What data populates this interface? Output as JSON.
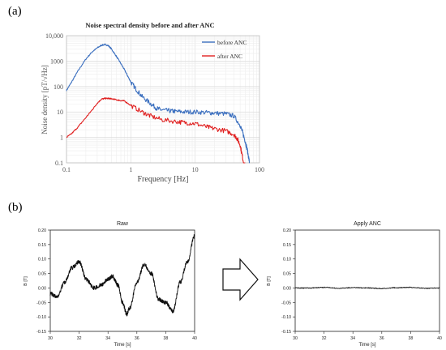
{
  "panel_a": {
    "label": "(a)",
    "title": "Noise spectral density before and after ANC",
    "xlabel": "Frequency [Hz]",
    "ylabel": "Noise density [pT/√Hz]",
    "xticks": [
      "0.1",
      "1",
      "10",
      "100"
    ],
    "yticks": [
      "0.1",
      "1",
      "10",
      "100",
      "1000",
      "10,000"
    ],
    "legend": [
      {
        "label": "before ANC",
        "color": "#3b6fbf"
      },
      {
        "label": "after ANC",
        "color": "#e02020"
      }
    ]
  },
  "panel_b": {
    "label": "(b)",
    "arrow_icon": "right-arrow-outline-icon",
    "raw": {
      "title": "Raw",
      "xlabel": "Time [s]",
      "ylabel": "B [T]",
      "xticks": [
        "30",
        "32",
        "34",
        "36",
        "38",
        "40"
      ],
      "yticks": [
        "-0.15",
        "-0.10",
        "-0.05",
        "0.00",
        "0.05",
        "0.10",
        "0.15",
        "0.20"
      ]
    },
    "anc": {
      "title": "Apply ANC",
      "xlabel": "Time [s]",
      "ylabel": "B [T]",
      "xticks": [
        "30",
        "32",
        "34",
        "36",
        "38",
        "40"
      ],
      "yticks": [
        "-0.15",
        "-0.10",
        "-0.05",
        "0.00",
        "0.05",
        "0.10",
        "0.15",
        "0.20"
      ]
    }
  },
  "chart_data": [
    {
      "type": "line",
      "title": "Noise spectral density before and after ANC",
      "xlabel": "Frequency [Hz]",
      "ylabel": "Noise density [pT/√Hz]",
      "xscale": "log",
      "yscale": "log",
      "xlim": [
        0.1,
        100
      ],
      "ylim": [
        0.1,
        10000
      ],
      "grid": true,
      "legend": "top-right",
      "series": [
        {
          "name": "before ANC",
          "color": "#3b6fbf",
          "x": [
            0.1,
            0.12,
            0.15,
            0.2,
            0.25,
            0.3,
            0.35,
            0.4,
            0.45,
            0.5,
            0.6,
            0.7,
            0.8,
            0.9,
            1,
            1.2,
            1.5,
            2,
            2.5,
            3,
            4,
            5,
            7,
            10,
            15,
            20,
            30,
            40,
            50,
            55,
            60,
            65,
            70
          ],
          "y": [
            70,
            150,
            400,
            1200,
            2300,
            3300,
            4200,
            4500,
            4000,
            3000,
            1500,
            800,
            450,
            250,
            150,
            80,
            40,
            22,
            14,
            12,
            11,
            10.5,
            10,
            10,
            9.5,
            9,
            8.5,
            7,
            3,
            1.5,
            0.7,
            0.3,
            0.1
          ]
        },
        {
          "name": "after ANC",
          "color": "#e02020",
          "x": [
            0.1,
            0.12,
            0.15,
            0.2,
            0.25,
            0.3,
            0.35,
            0.4,
            0.45,
            0.5,
            0.6,
            0.7,
            0.8,
            1,
            1.5,
            2,
            3,
            5,
            7,
            10,
            15,
            20,
            30,
            40,
            45,
            50,
            55,
            60
          ],
          "y": [
            1,
            1.4,
            2.5,
            6,
            12,
            22,
            32,
            34,
            34,
            33,
            30,
            28,
            27,
            18,
            10,
            7,
            5,
            4.2,
            3.8,
            3.5,
            2.6,
            2.2,
            1.8,
            1.3,
            0.9,
            0.5,
            0.15,
            0.05
          ]
        }
      ]
    },
    {
      "type": "line",
      "title": "Raw",
      "xlabel": "Time [s]",
      "ylabel": "B [T]",
      "xlim": [
        30,
        40
      ],
      "ylim": [
        -0.15,
        0.2
      ],
      "series": [
        {
          "color": "#111111",
          "x": [
            30,
            30.5,
            31,
            31.5,
            32,
            32.5,
            33,
            33.5,
            34,
            34.3,
            34.7,
            35,
            35.3,
            35.5,
            36,
            36.5,
            37,
            37.5,
            38,
            38.5,
            39,
            39.5,
            40
          ],
          "y": [
            -0.02,
            -0.03,
            0.02,
            0.07,
            0.09,
            0.03,
            0.0,
            0.01,
            0.03,
            0.04,
            0.01,
            -0.05,
            -0.09,
            -0.07,
            0.02,
            0.08,
            0.05,
            -0.04,
            -0.05,
            -0.08,
            0.02,
            0.09,
            0.18
          ]
        }
      ]
    },
    {
      "type": "line",
      "title": "Apply ANC",
      "xlabel": "Time [s]",
      "ylabel": "B [T]",
      "xlim": [
        30,
        40
      ],
      "ylim": [
        -0.15,
        0.2
      ],
      "series": [
        {
          "color": "#111111",
          "x": [
            30,
            31,
            32,
            33,
            34,
            35,
            36,
            37,
            38,
            39,
            40
          ],
          "y": [
            0.0,
            0.0,
            0.002,
            -0.001,
            0.001,
            0.0,
            -0.002,
            0.001,
            0.002,
            -0.001,
            0.0
          ]
        }
      ]
    }
  ]
}
